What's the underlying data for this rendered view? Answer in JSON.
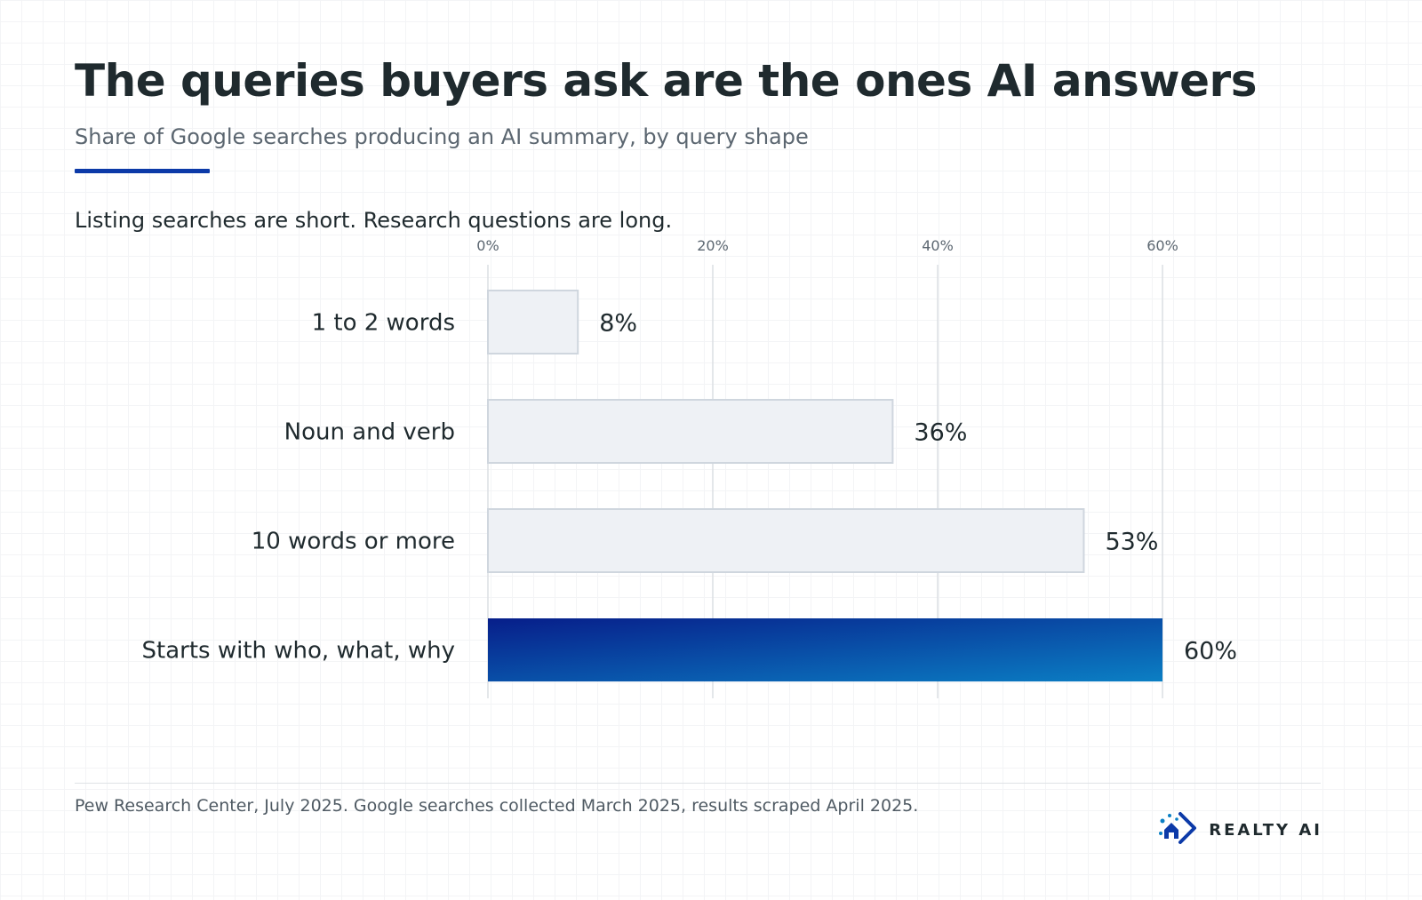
{
  "header": {
    "title": "The queries buyers ask are the ones AI answers",
    "subtitle": "Share of Google searches producing an AI summary, by query shape"
  },
  "chart_caption": "Listing searches are short. Research questions are long.",
  "chart_data": {
    "type": "bar",
    "orientation": "horizontal",
    "categories": [
      "1 to 2 words",
      "Noun and verb",
      "10 words or more",
      "Starts with who, what, why"
    ],
    "values": [
      8,
      36,
      53,
      60
    ],
    "value_labels": [
      "8%",
      "36%",
      "53%",
      "60%"
    ],
    "xlim": [
      0,
      60
    ],
    "x_ticks": [
      0,
      20,
      40,
      60
    ],
    "x_tick_labels": [
      "0%",
      "20%",
      "40%",
      "60%"
    ],
    "x_axis_position": "top",
    "grid": true,
    "highlighted_category": "Starts with who, what, why"
  },
  "colors": {
    "accent": "#0c3aa8",
    "bar_default_fill": "#eef1f5",
    "bar_default_stroke": "#cfd6de",
    "bar_highlight_start": "#071e8a",
    "bar_highlight_end": "#0b7fc4",
    "highlight_label": "#0c3aa8",
    "gridline": "#dcdfe4"
  },
  "footer": {
    "source": "Pew Research Center, July 2025. Google searches collected March 2025, results scraped April 2025.",
    "brand_name": "REALTY AI",
    "brand_icon": "realty-ai-logo-icon"
  }
}
